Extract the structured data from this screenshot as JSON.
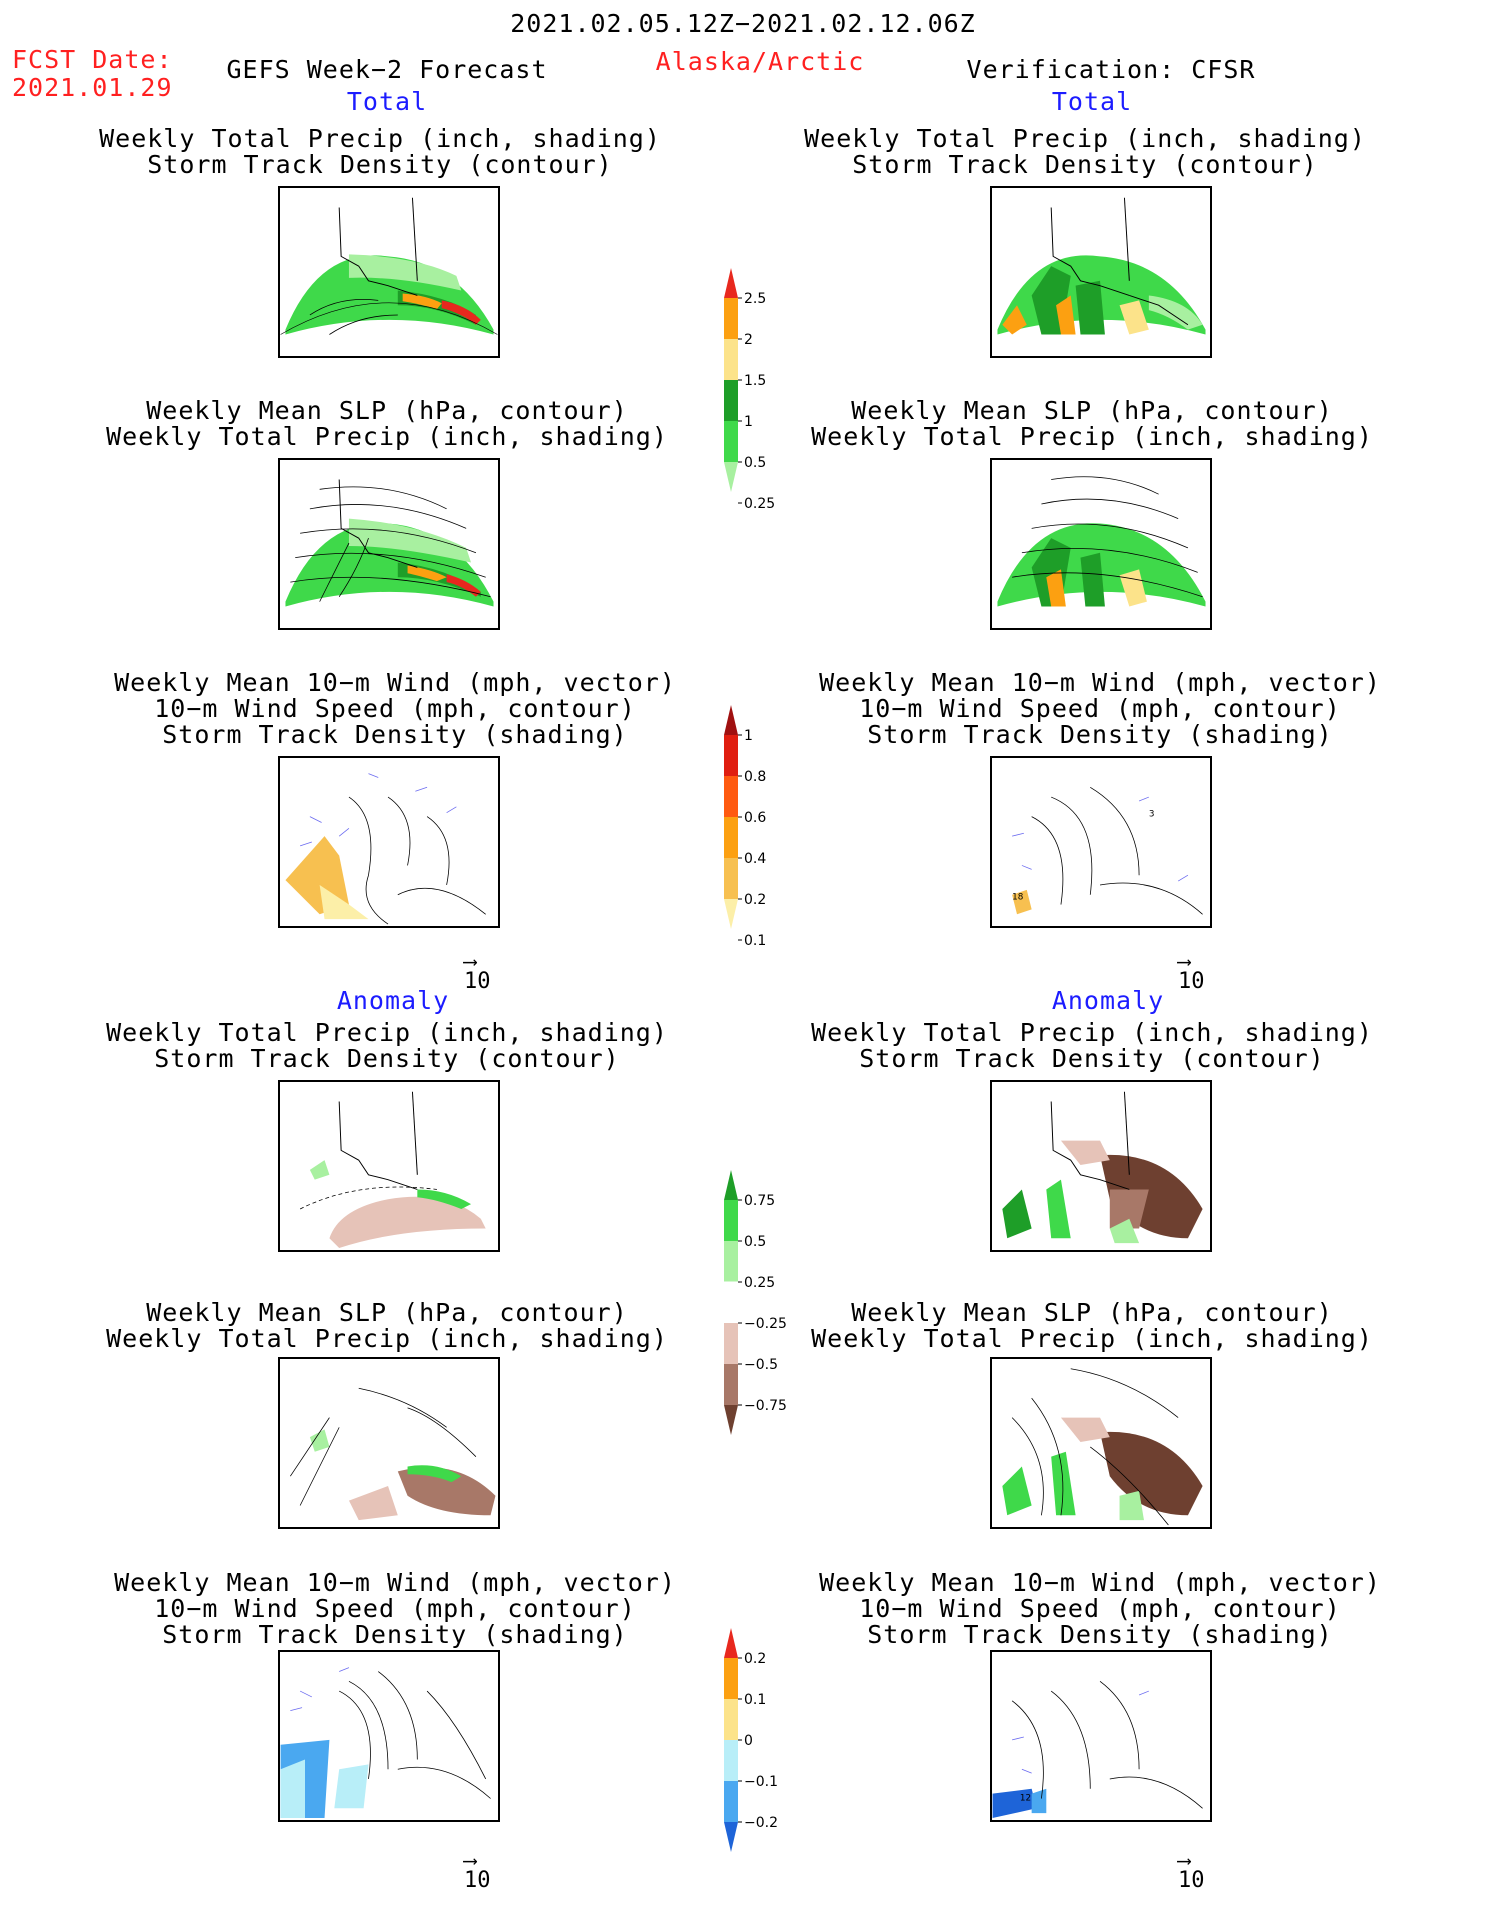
{
  "header": {
    "period": "2021.02.05.12Z−2021.02.12.06Z",
    "fcst_label": "FCST Date:",
    "fcst_date": "2021.01.29",
    "model": "GEFS Week−2 Forecast",
    "region": "Alaska/Arctic",
    "verification": "Verification: CFSR"
  },
  "sections": {
    "total": "Total",
    "anomaly": "Anomaly"
  },
  "titles": {
    "precip_track": [
      "Weekly Total Precip (inch, shading)",
      "Storm Track Density (contour)"
    ],
    "slp_precip": [
      "Weekly Mean SLP (hPa, contour)",
      "Weekly Total Precip (inch, shading)"
    ],
    "wind_track": [
      "Weekly Mean 10−m Wind (mph, vector)",
      "10−m Wind Speed (mph, contour)",
      "Storm Track Density (shading)"
    ]
  },
  "vector_ref": "10",
  "contour_labels": {
    "obs_wind_total_a": "18",
    "obs_wind_total_b": "3",
    "obs_wind_anom": "12"
  },
  "colorbars": {
    "total_precip": {
      "labels": [
        "2.5",
        "2",
        "1.5",
        "1",
        "0.5",
        "0.25"
      ],
      "colors": [
        "#e8281e",
        "#fca011",
        "#fce38a",
        "#1e9e28",
        "#3fd94a",
        "#a8f0a0"
      ]
    },
    "total_track": {
      "labels": [
        "1",
        "0.8",
        "0.6",
        "0.4",
        "0.2",
        "0.1"
      ],
      "colors": [
        "#a01010",
        "#e01e10",
        "#ff5a10",
        "#fca011",
        "#f7c050",
        "#fcefa8"
      ]
    },
    "anom_precip": {
      "labels": [
        "0.75",
        "0.5",
        "0.25",
        "−0.25",
        "−0.5",
        "−0.75"
      ],
      "colors": [
        "#1e9e28",
        "#3fd94a",
        "#a8f0a0",
        "#ffffff",
        "#e6c3b8",
        "#a87868",
        "#6e4030"
      ]
    },
    "anom_track": {
      "labels": [
        "0.2",
        "0.1",
        "0",
        "−0.1",
        "−0.2"
      ],
      "colors": [
        "#e8281e",
        "#fca011",
        "#fce38a",
        "#b8eef8",
        "#4aa8f0",
        "#1e64d8"
      ]
    }
  }
}
